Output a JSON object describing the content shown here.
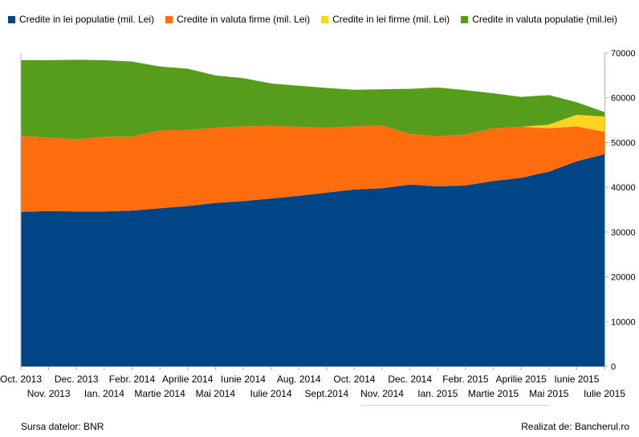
{
  "chart_data": {
    "type": "area",
    "stacked": true,
    "categories": [
      "Oct. 2013",
      "Nov. 2013",
      "Dec. 2013",
      "Ian. 2014",
      "Febr. 2014",
      "Martie 2014",
      "Aprilie 2014",
      "Mai 2014",
      "Iunie 2014",
      "Iulie 2014",
      "Aug. 2014",
      "Sept.2014",
      "Oct. 2014",
      "Nov. 2014",
      "Dec. 2014",
      "Ian. 2015",
      "Febr. 2015",
      "Martie 2015",
      "Aprilie 2015",
      "Mai 2015",
      "Iunie 2015",
      "Iulie 2015"
    ],
    "series": [
      {
        "name": "Credite in lei populatie (mil. Lei)",
        "color": "#004586",
        "values": [
          34500,
          34700,
          34600,
          34600,
          34800,
          35300,
          35800,
          36500,
          36900,
          37500,
          38100,
          38800,
          39500,
          39800,
          40600,
          40200,
          40400,
          41400,
          42100,
          43500,
          45800,
          47400
        ]
      },
      {
        "name": "Credite in valuta firme (mil. Lei)",
        "color": "#ff6d0e",
        "values": [
          17000,
          16400,
          16100,
          16700,
          16500,
          17400,
          17000,
          16800,
          16700,
          16200,
          15400,
          14500,
          14100,
          14000,
          11300,
          11200,
          11400,
          11800,
          11400,
          9700,
          7800,
          5000
        ]
      },
      {
        "name": "Credite in lei firme (mil. Lei)",
        "color": "#ffd320",
        "values": [
          0,
          0,
          0,
          0,
          0,
          0,
          0,
          0,
          0,
          0,
          0,
          0,
          0,
          0,
          0,
          0,
          0,
          0,
          0,
          800,
          2600,
          3400
        ]
      },
      {
        "name": "Credite in valuta populatie (mil.lei)",
        "color": "#579d1c",
        "values": [
          16900,
          17300,
          17800,
          17100,
          16800,
          14300,
          13700,
          11700,
          10800,
          9500,
          9200,
          8900,
          8200,
          8100,
          10100,
          10900,
          9900,
          7800,
          6700,
          6600,
          2800,
          1000
        ]
      }
    ],
    "ylim": [
      0,
      70000
    ],
    "yticks": [
      0,
      10000,
      20000,
      30000,
      40000,
      50000,
      60000,
      70000
    ],
    "xlabel": "",
    "ylabel": "",
    "y_axis_side": "right",
    "legend_position": "top",
    "grid": false
  },
  "footer": {
    "source": "Sursa datelor: BNR",
    "credit": "Realizat de: Bancherul.ro"
  }
}
